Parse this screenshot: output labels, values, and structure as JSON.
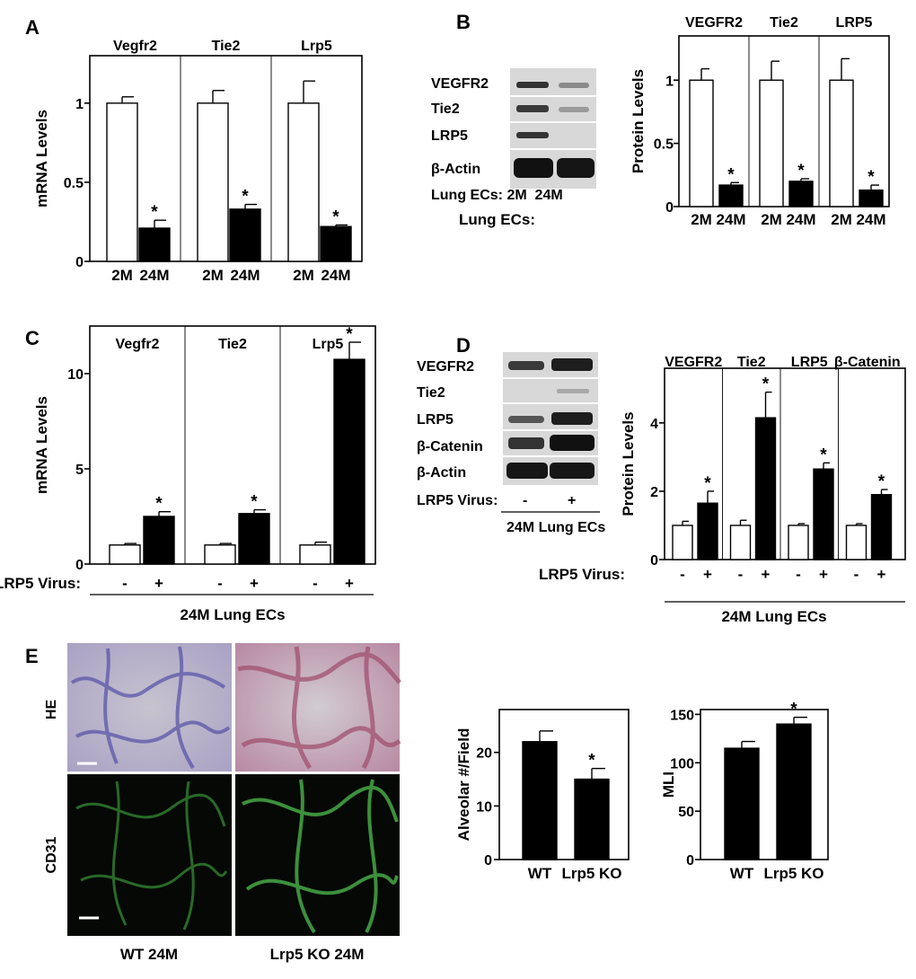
{
  "chart_data": [
    {
      "type": "bar",
      "panel": "A",
      "ylabel": "mRNA Levels",
      "ylim": [
        0,
        1.3
      ],
      "yticks": [
        "0",
        "0.5",
        "1"
      ],
      "groups": [
        {
          "label": "Vegfr2",
          "categories": [
            "2M",
            "24M"
          ],
          "values": [
            1.0,
            0.21
          ],
          "errors": [
            0.04,
            0.05
          ],
          "significant": [
            false,
            true
          ]
        },
        {
          "label": "Tie2",
          "categories": [
            "2M",
            "24M"
          ],
          "values": [
            1.0,
            0.33
          ],
          "errors": [
            0.08,
            0.03
          ],
          "significant": [
            false,
            true
          ]
        },
        {
          "label": "Lrp5",
          "categories": [
            "2M",
            "24M"
          ],
          "values": [
            1.0,
            0.22
          ],
          "errors": [
            0.14,
            0.01
          ],
          "significant": [
            false,
            true
          ]
        }
      ],
      "fills": [
        "#ffffff",
        "#000000"
      ],
      "star": "*"
    },
    {
      "type": "bar",
      "panel": "B",
      "ylabel": "Protein Levels",
      "ylim": [
        0,
        1.35
      ],
      "yticks": [
        "0",
        "0.5",
        "1"
      ],
      "groups": [
        {
          "label": "VEGFR2",
          "categories": [
            "2M",
            "24M"
          ],
          "values": [
            1.0,
            0.17
          ],
          "errors": [
            0.09,
            0.02
          ],
          "significant": [
            false,
            true
          ]
        },
        {
          "label": "Tie2",
          "categories": [
            "2M",
            "24M"
          ],
          "values": [
            1.0,
            0.2
          ],
          "errors": [
            0.15,
            0.02
          ],
          "significant": [
            false,
            true
          ]
        },
        {
          "label": "LRP5",
          "categories": [
            "2M",
            "24M"
          ],
          "values": [
            1.0,
            0.13
          ],
          "errors": [
            0.17,
            0.04
          ],
          "significant": [
            false,
            true
          ]
        }
      ],
      "row_label": "Lung ECs:",
      "fills": [
        "#ffffff",
        "#000000"
      ],
      "star": "*"
    },
    {
      "type": "bar",
      "panel": "C",
      "ylabel": "mRNA Levels",
      "ylim": [
        0,
        12.5
      ],
      "yticks": [
        "0",
        "5",
        "10"
      ],
      "groups": [
        {
          "label": "Vegfr2",
          "categories": [
            "-",
            "+"
          ],
          "values": [
            1.0,
            2.5
          ],
          "errors": [
            0.08,
            0.25
          ],
          "significant": [
            false,
            true
          ]
        },
        {
          "label": "Tie2",
          "categories": [
            "-",
            "+"
          ],
          "values": [
            1.0,
            2.65
          ],
          "errors": [
            0.08,
            0.2
          ],
          "significant": [
            false,
            true
          ]
        },
        {
          "label": "Lrp5",
          "categories": [
            "-",
            "+"
          ],
          "values": [
            1.0,
            10.75
          ],
          "errors": [
            0.15,
            0.9
          ],
          "significant": [
            false,
            true
          ]
        }
      ],
      "row_label": "LRP5 Virus:",
      "footer": "24M Lung ECs",
      "fills": [
        "#ffffff",
        "#000000"
      ],
      "star": "*"
    },
    {
      "type": "bar",
      "panel": "D",
      "ylabel": "Protein Levels",
      "ylim": [
        0,
        5.6
      ],
      "yticks": [
        "0",
        "2",
        "4"
      ],
      "groups": [
        {
          "label": "VEGFR2",
          "categories": [
            "-",
            "+"
          ],
          "values": [
            1.0,
            1.65
          ],
          "errors": [
            0.12,
            0.35
          ],
          "significant": [
            false,
            true
          ]
        },
        {
          "label": "Tie2",
          "categories": [
            "-",
            "+"
          ],
          "values": [
            1.0,
            4.15
          ],
          "errors": [
            0.15,
            0.75
          ],
          "significant": [
            false,
            true
          ]
        },
        {
          "label": "LRP5",
          "categories": [
            "-",
            "+"
          ],
          "values": [
            1.0,
            2.65
          ],
          "errors": [
            0.05,
            0.18
          ],
          "significant": [
            false,
            true
          ]
        },
        {
          "label": "β-Catenin",
          "categories": [
            "-",
            "+"
          ],
          "values": [
            1.0,
            1.9
          ],
          "errors": [
            0.05,
            0.15
          ],
          "significant": [
            false,
            true
          ]
        }
      ],
      "row_label": "LRP5 Virus:",
      "footer": "24M Lung ECs",
      "fills": [
        "#ffffff",
        "#000000"
      ],
      "star": "*"
    },
    {
      "type": "bar",
      "panel": "E-left",
      "ylabel": "Alveolar #/Field",
      "ylim": [
        0,
        28
      ],
      "yticks": [
        "0",
        "10",
        "20"
      ],
      "categories": [
        "WT",
        "Lrp5 KO"
      ],
      "values": [
        22,
        15
      ],
      "errors": [
        2,
        2
      ],
      "significant": [
        false,
        true
      ],
      "fills": [
        "#000000",
        "#000000"
      ],
      "star": "*"
    },
    {
      "type": "bar",
      "panel": "E-right",
      "ylabel": "MLI",
      "ylim": [
        0,
        155
      ],
      "yticks": [
        "0",
        "50",
        "100",
        "150"
      ],
      "categories": [
        "WT",
        "Lrp5 KO"
      ],
      "values": [
        115,
        140
      ],
      "errors": [
        7,
        7
      ],
      "significant": [
        false,
        true
      ],
      "fills": [
        "#000000",
        "#000000"
      ],
      "star": "*"
    }
  ],
  "blots": {
    "B": {
      "rows": [
        "VEGFR2",
        "Tie2",
        "LRP5",
        "β-Actin"
      ],
      "lane_label": "Lung ECs: 2M  24M"
    },
    "D": {
      "rows": [
        "VEGFR2",
        "Tie2",
        "LRP5",
        "β-Catenin",
        "β-Actin"
      ],
      "lane_label": "LRP5 Virus:",
      "lanes": [
        "-",
        "+"
      ],
      "footer": "24M Lung ECs"
    }
  },
  "panel_E_images": {
    "row_labels": [
      "HE",
      "CD31"
    ],
    "col_labels": [
      "WT 24M",
      "Lrp5 KO 24M"
    ]
  },
  "panel_letters": [
    "A",
    "B",
    "C",
    "D",
    "E"
  ]
}
